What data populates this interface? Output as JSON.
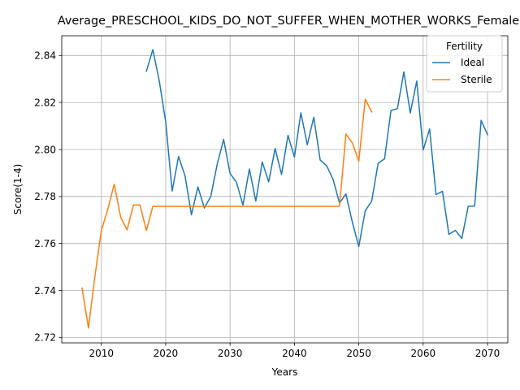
{
  "chart_data": {
    "type": "line",
    "title": "Average_PRESCHOOL_KIDS_DO_NOT_SUFFER_WHEN_MOTHER_WORKS_Female",
    "xlabel": "Years",
    "ylabel": "Score(1-4)",
    "xlim": [
      2003.85,
      2073.15
    ],
    "ylim": [
      2.7177,
      2.8484
    ],
    "xticks": [
      2010,
      2020,
      2030,
      2040,
      2050,
      2060,
      2070
    ],
    "yticks": [
      2.72,
      2.74,
      2.76,
      2.78,
      2.8,
      2.82,
      2.84
    ],
    "ytick_labels": [
      "2.72",
      "2.74",
      "2.76",
      "2.78",
      "2.80",
      "2.82",
      "2.84"
    ],
    "grid": true,
    "legend": {
      "title": "Fertility",
      "placement": "top-right"
    },
    "series": [
      {
        "name": "Ideal",
        "color": "#1f77b4",
        "x": [
          2017,
          2018,
          2019,
          2020,
          2021,
          2022,
          2023,
          2024,
          2025,
          2026,
          2027,
          2028,
          2029,
          2030,
          2031,
          2032,
          2033,
          2034,
          2035,
          2036,
          2037,
          2038,
          2039,
          2040,
          2041,
          2042,
          2043,
          2044,
          2045,
          2046,
          2047,
          2048,
          2049,
          2050,
          2051,
          2052,
          2053,
          2054,
          2055,
          2056,
          2057,
          2058,
          2059,
          2060,
          2061,
          2062,
          2063,
          2064,
          2065,
          2066,
          2067,
          2068,
          2069,
          2070
        ],
        "y": [
          2.8333,
          2.8425,
          2.8292,
          2.8118,
          2.7823,
          2.797,
          2.7888,
          2.7722,
          2.7841,
          2.7751,
          2.78,
          2.7937,
          2.8043,
          2.7898,
          2.786,
          2.7763,
          2.7917,
          2.778,
          2.7947,
          2.7862,
          2.8004,
          2.7894,
          2.806,
          2.7968,
          2.8156,
          2.802,
          2.8137,
          2.7955,
          2.7931,
          2.7873,
          2.7772,
          2.7811,
          2.769,
          2.7587,
          2.7739,
          2.778,
          2.7941,
          2.796,
          2.8166,
          2.8174,
          2.833,
          2.8155,
          2.8291,
          2.7998,
          2.8087,
          2.7808,
          2.7822,
          2.7639,
          2.7656,
          2.7621,
          2.7758,
          2.7759,
          2.8124,
          2.8063
        ]
      },
      {
        "name": "Sterile",
        "color": "#ff7f0e",
        "x": [
          2007,
          2008,
          2009,
          2010,
          2011,
          2012,
          2013,
          2014,
          2015,
          2016,
          2017,
          2018,
          2019,
          2020,
          2021,
          2022,
          2023,
          2024,
          2025,
          2026,
          2027,
          2028,
          2029,
          2030,
          2031,
          2032,
          2033,
          2034,
          2035,
          2036,
          2037,
          2038,
          2039,
          2040,
          2041,
          2042,
          2043,
          2044,
          2045,
          2046,
          2047,
          2048,
          2049,
          2050,
          2051,
          2052
        ],
        "y": [
          2.741,
          2.724,
          2.746,
          2.7655,
          2.7745,
          2.7852,
          2.7712,
          2.7658,
          2.7764,
          2.7764,
          2.7655,
          2.7758,
          2.7758,
          2.7758,
          2.7758,
          2.7758,
          2.7758,
          2.7758,
          2.7758,
          2.7758,
          2.7758,
          2.7758,
          2.7758,
          2.7758,
          2.7758,
          2.7758,
          2.7758,
          2.7758,
          2.7758,
          2.7758,
          2.7758,
          2.7758,
          2.7758,
          2.7758,
          2.7758,
          2.7758,
          2.7758,
          2.7758,
          2.7758,
          2.7758,
          2.7758,
          2.8066,
          2.8028,
          2.795,
          2.8214,
          2.816
        ]
      }
    ]
  }
}
